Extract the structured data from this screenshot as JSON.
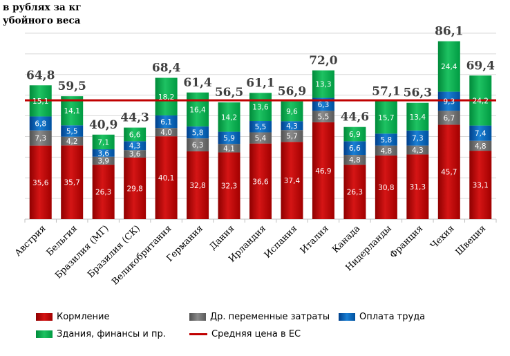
{
  "unit_label": "в рублях за кг убойного веса",
  "colors": {
    "feed": "#c00000",
    "other_variable": "#7f7f7f",
    "labor": "#0070c0",
    "buildings": "#00b050",
    "eu_line": "#c00000"
  },
  "legend": {
    "feed": "Кормление",
    "other_variable": "Др. переменные затраты",
    "labor": "Оплата труда",
    "buildings": "Здания, финансы и пр.",
    "eu_line": "Средняя цена в ЕС"
  },
  "chart_data": {
    "type": "bar",
    "stacked": true,
    "ylim": [
      0,
      90
    ],
    "grid": true,
    "reference_line": {
      "name": "Средняя цена в ЕС",
      "value": 57.5
    },
    "categories": [
      "Австрия",
      "Бельгия",
      "Бразилия (МГ)",
      "Бразилия (СК)",
      "Великобритания",
      "Германия",
      "Дания",
      "Ирландия",
      "Испания",
      "Италия",
      "Канада",
      "Нидерланды",
      "Франция",
      "Чехия",
      "Швеция"
    ],
    "totals": [
      "64,8",
      "59,5",
      "40,9",
      "44,3",
      "68,4",
      "61,4",
      "56,5",
      "61,1",
      "56,9",
      "72,0",
      "44,6",
      "57,1",
      "56,3",
      "86,1",
      "69,4"
    ],
    "series": [
      {
        "name": "Кормление",
        "values": [
          35.6,
          35.7,
          26.3,
          29.8,
          40.1,
          32.8,
          32.3,
          36.6,
          37.4,
          46.9,
          26.3,
          30.8,
          31.3,
          45.7,
          33.1
        ],
        "labels": [
          "35,6",
          "35,7",
          "26,3",
          "29,8",
          "40,1",
          "32,8",
          "32,3",
          "36,6",
          "37,4",
          "46,9",
          "26,3",
          "30,8",
          "31,3",
          "45,7",
          "33,1"
        ]
      },
      {
        "name": "Др. переменные затраты",
        "values": [
          7.3,
          4.2,
          3.9,
          3.6,
          4.0,
          6.3,
          4.1,
          5.4,
          5.7,
          5.5,
          4.8,
          4.8,
          4.3,
          6.7,
          4.8
        ],
        "labels": [
          "7,3",
          "4,2",
          "3,9",
          "3,6",
          "4,0",
          "6,3",
          "4,1",
          "5,4",
          "5,7",
          "5,5",
          "4,8",
          "4,8",
          "4,3",
          "6,7",
          "4,8"
        ]
      },
      {
        "name": "Оплата труда",
        "values": [
          6.8,
          5.5,
          3.6,
          4.3,
          6.1,
          5.8,
          5.9,
          5.5,
          4.3,
          6.3,
          6.6,
          5.8,
          7.3,
          9.3,
          7.4
        ],
        "labels": [
          "6,8",
          "5,5",
          "3,6",
          "4,3",
          "6,1",
          "5,8",
          "5,9",
          "5,5",
          "4,3",
          "6,3",
          "6,6",
          "5,8",
          "7,3",
          "9,3",
          "7,4"
        ]
      },
      {
        "name": "Здания, финансы и пр.",
        "values": [
          15.1,
          14.1,
          7.1,
          6.6,
          18.2,
          16.4,
          14.2,
          13.6,
          9.6,
          13.3,
          6.9,
          15.7,
          13.4,
          24.4,
          24.2
        ],
        "labels": [
          "15,1",
          "14,1",
          "7,1",
          "6,6",
          "18,2",
          "16,4",
          "14,2",
          "13,6",
          "9,6",
          "13,3",
          "6,9",
          "15,7",
          "13,4",
          "24,4",
          "24,2"
        ]
      }
    ]
  }
}
